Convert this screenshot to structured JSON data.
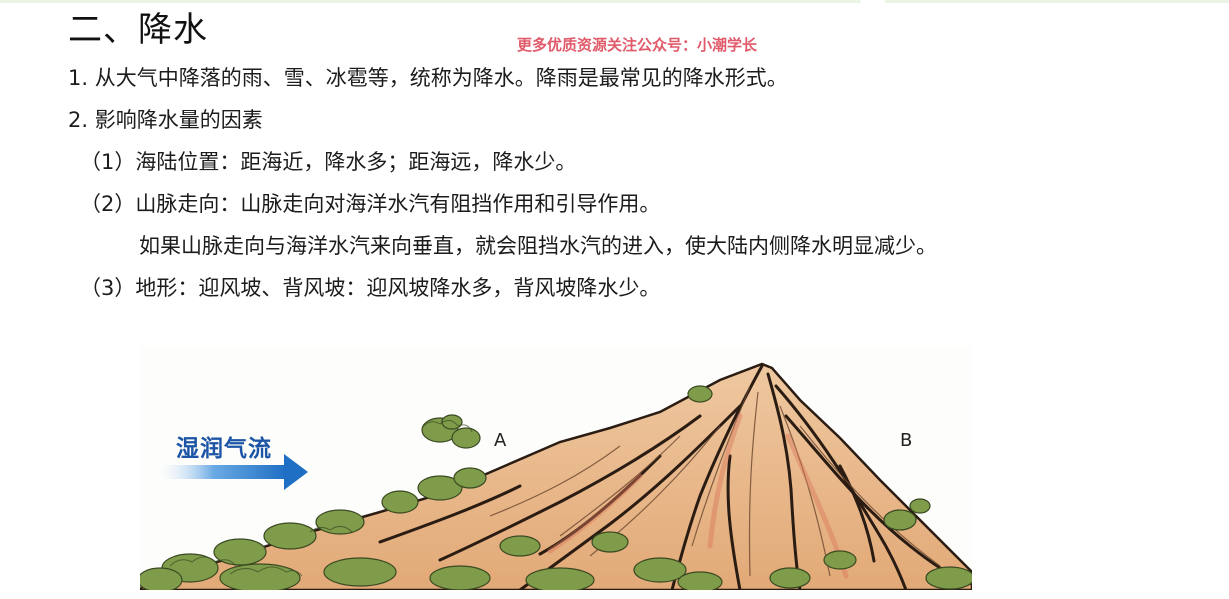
{
  "title": "二、降水",
  "watermark": "更多优质资源关注公众号：小潮学长",
  "lines": [
    "1.   从大气中降落的雨、雪、冰雹等，统称为降水。降雨是最常见的降水形式。",
    "2. 影响降水量的因素",
    "（1）海陆位置：距海近，降水多；距海远，降水少。",
    "（2）山脉走向：山脉走向对海洋水汽有阻挡作用和引导作用。",
    "如果山脉走向与海洋水汽来向垂直，就会阻挡水汽的进入，使大陆内侧降水明显减少。",
    "（3）地形：迎风坡、背风坡：迎风坡降水多，背风坡降水少。"
  ],
  "figure": {
    "airflow_label": "湿润气流",
    "label_a": "A",
    "label_b": "B",
    "colors": {
      "arrow": "#1f6fc4",
      "airflow_text": "#1c55a5",
      "mountain_fill": "#e8b889",
      "vegetation": "#7f9c4a"
    }
  }
}
